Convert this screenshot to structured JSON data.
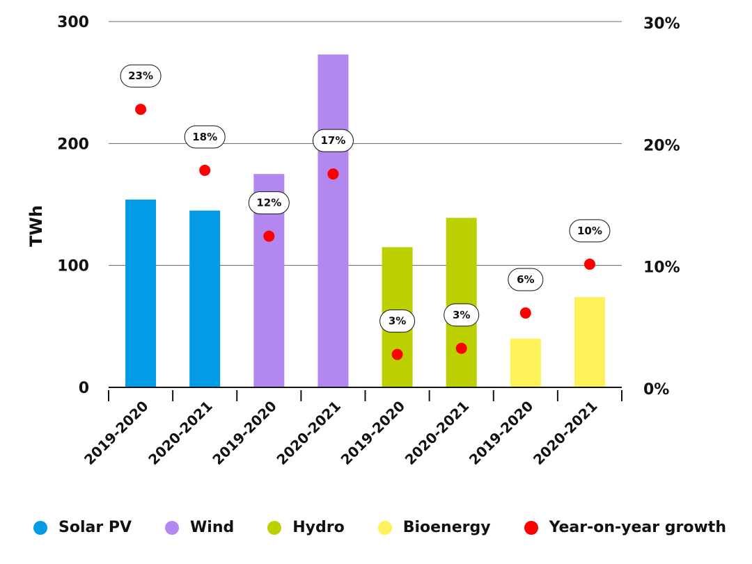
{
  "chart_data": {
    "type": "bar",
    "categories": [
      "2019-2020",
      "2020-2021",
      "2019-2020",
      "2020-2021",
      "2019-2020",
      "2020-2021",
      "2019-2020",
      "2020-2021"
    ],
    "values": [
      154,
      145,
      175,
      273,
      115,
      139,
      40,
      74
    ],
    "bar_groups": [
      "Solar PV",
      "Solar PV",
      "Wind",
      "Wind",
      "Hydro",
      "Hydro",
      "Bioenergy",
      "Bioenergy"
    ],
    "ylabel": "TWh",
    "ylim": [
      0,
      300
    ],
    "yticks": [
      "0",
      "100",
      "200",
      "300"
    ],
    "y2lim": [
      0,
      30
    ],
    "y2ticks": [
      "0%",
      "10%",
      "20%",
      "30%"
    ],
    "growth": {
      "name": "Year-on-year growth",
      "values": [
        23,
        18,
        12,
        17,
        3,
        3,
        6,
        10
      ],
      "plotted": [
        22.8,
        17.8,
        12.4,
        17.5,
        2.7,
        3.2,
        6.1,
        10.1
      ],
      "labels": [
        "23%",
        "18%",
        "12%",
        "17%",
        "3%",
        "3%",
        "6%",
        "10%"
      ],
      "color": "#ff0000"
    },
    "grid": true,
    "legend_placement": "bottom",
    "legend": [
      {
        "name": "Solar PV",
        "color": "#039be5"
      },
      {
        "name": "Wind",
        "color": "#b388ee"
      },
      {
        "name": "Hydro",
        "color": "#bccf00"
      },
      {
        "name": "Bioenergy",
        "color": "#fff159"
      },
      {
        "name": "Year-on-year growth",
        "color": "#ff0000"
      }
    ],
    "group_colors": {
      "Solar PV": "#039be5",
      "Wind": "#b388ee",
      "Hydro": "#bccf00",
      "Bioenergy": "#fff159"
    }
  }
}
